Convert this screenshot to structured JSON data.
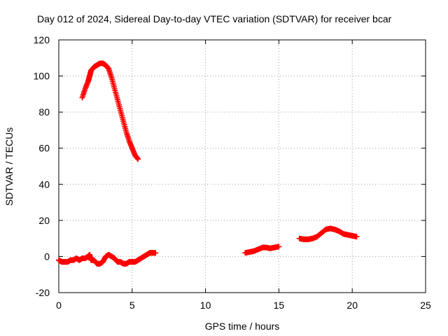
{
  "chart_data": {
    "type": "scatter",
    "title": "Day 012 of 2024, Sidereal Day-to-day VTEC variation (SDTVAR) for receiver bcar",
    "xlabel": "GPS time / hours",
    "ylabel": "SDTVAR / TECUs",
    "xlim": [
      0,
      25
    ],
    "ylim": [
      -20,
      120
    ],
    "xticks": [
      0,
      5,
      10,
      15,
      20,
      25
    ],
    "yticks": [
      -20,
      0,
      20,
      40,
      60,
      80,
      100,
      120
    ],
    "grid": true,
    "marker": "plus",
    "color": "#ff0000",
    "series": [
      {
        "name": "high-arc",
        "x": [
          1.6,
          1.8,
          2.0,
          2.1,
          2.2,
          2.4,
          2.6,
          2.8,
          3.0,
          3.2,
          3.4,
          3.6,
          3.8,
          4.0,
          4.2,
          4.4,
          4.6,
          4.8,
          5.0,
          5.2,
          5.4
        ],
        "y": [
          88,
          93,
          97,
          100,
          103,
          105,
          106,
          107,
          107,
          106,
          104,
          99,
          93,
          87,
          81,
          75,
          69,
          64,
          60,
          56,
          54
        ]
      },
      {
        "name": "low-segment-1",
        "x": [
          0.0,
          0.2,
          0.4,
          0.6,
          0.8,
          1.0,
          1.2,
          1.4,
          1.6,
          1.8,
          2.0,
          2.1,
          2.2,
          2.4,
          2.6,
          2.8,
          3.0,
          3.2,
          3.4,
          3.6,
          3.8,
          4.0,
          4.2,
          4.4,
          4.6,
          4.8,
          5.0,
          5.2,
          5.4,
          5.6,
          5.8,
          6.0,
          6.2,
          6.4,
          6.6
        ],
        "y": [
          -2,
          -3,
          -3,
          -3,
          -2,
          -2,
          -1,
          -2,
          -1,
          -1,
          0,
          1,
          -2,
          -2,
          -4,
          -4,
          -3,
          0,
          1,
          0,
          -1,
          -3,
          -3,
          -4,
          -4,
          -3,
          -3,
          -3,
          -2,
          -1,
          0,
          1,
          2,
          2,
          2
        ]
      },
      {
        "name": "low-segment-2",
        "x": [
          12.7,
          13.0,
          13.3,
          13.6,
          13.9,
          14.1,
          14.4,
          14.7,
          15.0
        ],
        "y": [
          2,
          2.5,
          3,
          4,
          5,
          5,
          4.5,
          5,
          5.5
        ]
      },
      {
        "name": "low-segment-3",
        "x": [
          16.4,
          16.7,
          17.0,
          17.3,
          17.6,
          17.9,
          18.2,
          18.5,
          18.8,
          19.1,
          19.4,
          19.7,
          20.0,
          20.3
        ],
        "y": [
          10,
          9.5,
          9.5,
          10,
          11,
          13,
          15,
          15.5,
          15,
          14,
          12.5,
          12,
          11.5,
          11
        ]
      }
    ]
  }
}
